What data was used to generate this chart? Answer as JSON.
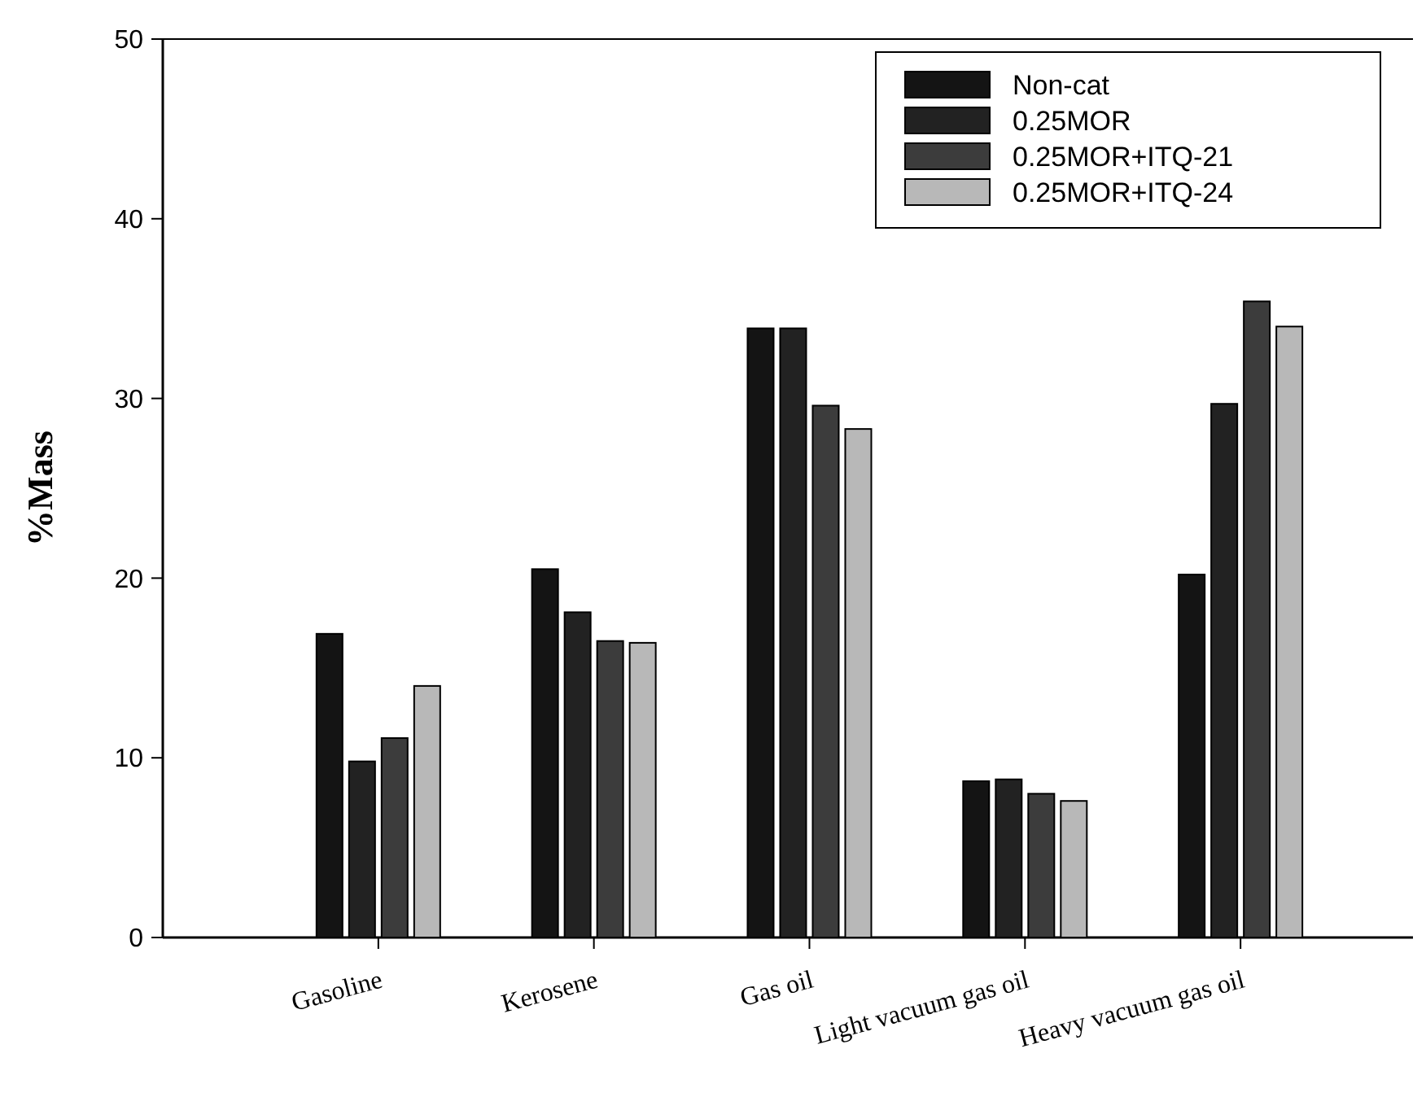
{
  "chart_data": {
    "type": "bar",
    "ylabel": "%Mass",
    "categories": [
      "Gasoline",
      "Kerosene",
      "Gas oil",
      "Light vacuum gas oil",
      "Heavy vacuum gas oil"
    ],
    "series": [
      {
        "name": "Non-cat",
        "color": "#141414",
        "values": [
          16.9,
          20.5,
          33.9,
          8.7,
          20.2
        ]
      },
      {
        "name": "0.25MOR",
        "color": "#222222",
        "values": [
          9.8,
          18.1,
          33.9,
          8.8,
          29.7
        ]
      },
      {
        "name": "0.25MOR+ITQ-21",
        "color": "#3c3c3c",
        "values": [
          11.1,
          16.5,
          29.6,
          8.0,
          35.4
        ]
      },
      {
        "name": "0.25MOR+ITQ-24",
        "color": "#b8b8b8",
        "values": [
          14.0,
          16.4,
          28.3,
          7.6,
          34.0
        ]
      }
    ],
    "ylim": [
      0,
      50
    ],
    "yticks": [
      0,
      10,
      20,
      30,
      40,
      50
    ],
    "legend": "top right"
  }
}
